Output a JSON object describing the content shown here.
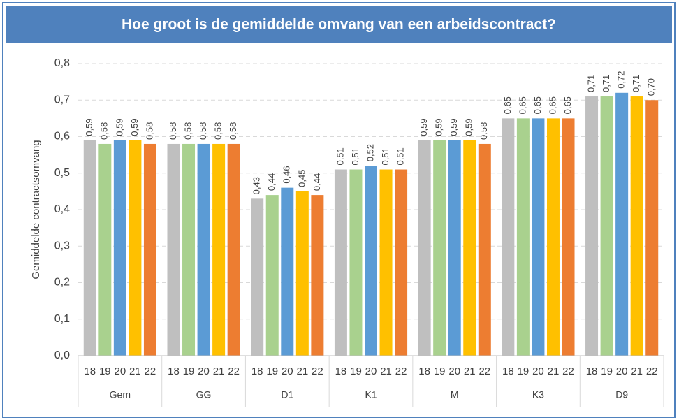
{
  "chart_data": {
    "type": "bar",
    "title": "Hoe groot is de gemiddelde omvang van een arbeidscontract?",
    "y_label": "Gemiddelde contractsomvang",
    "categories": [
      "Gem",
      "GG",
      "D1",
      "K1",
      "M",
      "K3",
      "D9"
    ],
    "series": [
      {
        "name": "18",
        "color": "#bfbfbf",
        "values": [
          0.59,
          0.58,
          0.43,
          0.51,
          0.59,
          0.65,
          0.71
        ],
        "value_labels": [
          "0,59",
          "0,58",
          "0,43",
          "0,51",
          "0,59",
          "0,65",
          "0,71"
        ]
      },
      {
        "name": "19",
        "color": "#a9d18e",
        "values": [
          0.58,
          0.58,
          0.44,
          0.51,
          0.59,
          0.65,
          0.71
        ],
        "value_labels": [
          "0,58",
          "0,58",
          "0,44",
          "0,51",
          "0,59",
          "0,65",
          "0,71"
        ]
      },
      {
        "name": "20",
        "color": "#5b9bd5",
        "values": [
          0.59,
          0.58,
          0.46,
          0.52,
          0.59,
          0.65,
          0.72
        ],
        "value_labels": [
          "0,59",
          "0,58",
          "0,46",
          "0,52",
          "0,59",
          "0,65",
          "0,72"
        ]
      },
      {
        "name": "21",
        "color": "#ffc000",
        "values": [
          0.59,
          0.58,
          0.45,
          0.51,
          0.59,
          0.65,
          0.71
        ],
        "value_labels": [
          "0,59",
          "0,58",
          "0,45",
          "0,51",
          "0,59",
          "0,65",
          "0,71"
        ]
      },
      {
        "name": "22",
        "color": "#ed7d31",
        "values": [
          0.58,
          0.58,
          0.44,
          0.51,
          0.58,
          0.65,
          0.7
        ],
        "value_labels": [
          "0,58",
          "0,58",
          "0,44",
          "0,51",
          "0,58",
          "0,65",
          "0,70"
        ]
      }
    ],
    "ylim": [
      0,
      0.8
    ],
    "yticks": [
      {
        "value": 0,
        "label": "0,0"
      },
      {
        "value": 0.1,
        "label": "0,1"
      },
      {
        "value": 0.2,
        "label": "0,2"
      },
      {
        "value": 0.3,
        "label": "0,3"
      },
      {
        "value": 0.4,
        "label": "0,4"
      },
      {
        "value": 0.5,
        "label": "0,5"
      },
      {
        "value": 0.6,
        "label": "0,6"
      },
      {
        "value": 0.7,
        "label": "0,7"
      },
      {
        "value": 0.8,
        "label": "0,8"
      }
    ],
    "grid": true
  }
}
